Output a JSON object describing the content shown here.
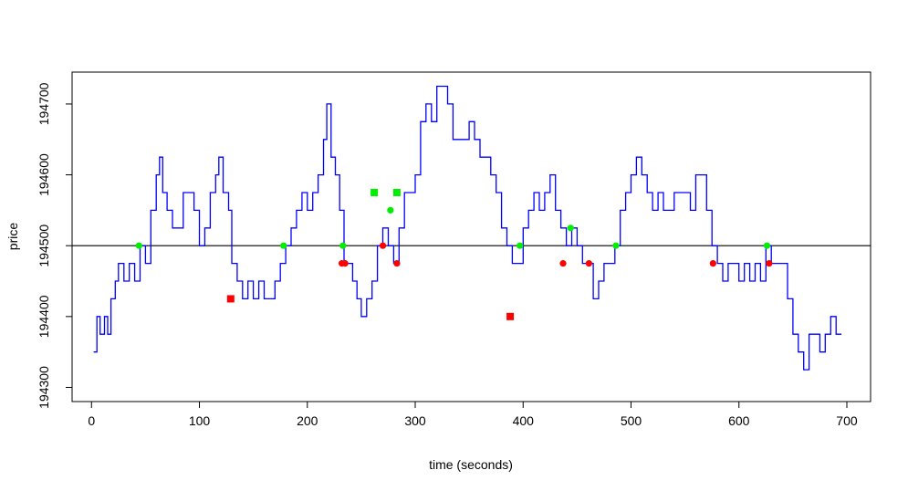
{
  "chart_data": {
    "type": "line",
    "title": "",
    "xlabel": "time (seconds)",
    "ylabel": "price",
    "xlim": [
      -18,
      722
    ],
    "ylim": [
      194280,
      194745
    ],
    "x_ticks": [
      0,
      100,
      200,
      300,
      400,
      500,
      600,
      700
    ],
    "y_ticks": [
      194300,
      194400,
      194500,
      194600,
      194700
    ],
    "grid": false,
    "legend": "none",
    "reference_line": {
      "y": 194500,
      "color": "#000000"
    },
    "price_series": {
      "color": "#0000ff",
      "points": [
        [
          2,
          194350
        ],
        [
          5,
          194400
        ],
        [
          8,
          194375
        ],
        [
          12,
          194400
        ],
        [
          15,
          194375
        ],
        [
          18,
          194425
        ],
        [
          22,
          194450
        ],
        [
          25,
          194475
        ],
        [
          30,
          194450
        ],
        [
          35,
          194475
        ],
        [
          40,
          194450
        ],
        [
          45,
          194500
        ],
        [
          50,
          194475
        ],
        [
          55,
          194550
        ],
        [
          60,
          194600
        ],
        [
          63,
          194625
        ],
        [
          66,
          194575
        ],
        [
          70,
          194550
        ],
        [
          75,
          194525
        ],
        [
          80,
          194525
        ],
        [
          85,
          194575
        ],
        [
          90,
          194575
        ],
        [
          95,
          194550
        ],
        [
          100,
          194500
        ],
        [
          105,
          194525
        ],
        [
          110,
          194575
        ],
        [
          115,
          194600
        ],
        [
          118,
          194625
        ],
        [
          122,
          194575
        ],
        [
          127,
          194550
        ],
        [
          130,
          194475
        ],
        [
          135,
          194450
        ],
        [
          140,
          194425
        ],
        [
          145,
          194450
        ],
        [
          150,
          194425
        ],
        [
          155,
          194450
        ],
        [
          160,
          194425
        ],
        [
          165,
          194425
        ],
        [
          170,
          194450
        ],
        [
          175,
          194475
        ],
        [
          180,
          194500
        ],
        [
          185,
          194525
        ],
        [
          190,
          194550
        ],
        [
          195,
          194575
        ],
        [
          200,
          194550
        ],
        [
          205,
          194575
        ],
        [
          210,
          194600
        ],
        [
          215,
          194650
        ],
        [
          218,
          194700
        ],
        [
          222,
          194625
        ],
        [
          226,
          194600
        ],
        [
          230,
          194550
        ],
        [
          234,
          194475
        ],
        [
          238,
          194475
        ],
        [
          242,
          194450
        ],
        [
          246,
          194425
        ],
        [
          250,
          194400
        ],
        [
          255,
          194425
        ],
        [
          260,
          194450
        ],
        [
          265,
          194500
        ],
        [
          270,
          194525
        ],
        [
          275,
          194500
        ],
        [
          280,
          194475
        ],
        [
          285,
          194525
        ],
        [
          290,
          194575
        ],
        [
          295,
          194575
        ],
        [
          300,
          194600
        ],
        [
          305,
          194675
        ],
        [
          310,
          194700
        ],
        [
          315,
          194675
        ],
        [
          320,
          194725
        ],
        [
          325,
          194725
        ],
        [
          330,
          194700
        ],
        [
          335,
          194650
        ],
        [
          340,
          194650
        ],
        [
          345,
          194650
        ],
        [
          350,
          194675
        ],
        [
          355,
          194650
        ],
        [
          360,
          194625
        ],
        [
          365,
          194625
        ],
        [
          370,
          194600
        ],
        [
          375,
          194575
        ],
        [
          380,
          194525
        ],
        [
          385,
          194500
        ],
        [
          390,
          194475
        ],
        [
          395,
          194475
        ],
        [
          400,
          194525
        ],
        [
          405,
          194550
        ],
        [
          410,
          194575
        ],
        [
          415,
          194550
        ],
        [
          420,
          194575
        ],
        [
          425,
          194600
        ],
        [
          430,
          194550
        ],
        [
          435,
          194525
        ],
        [
          440,
          194500
        ],
        [
          445,
          194525
        ],
        [
          450,
          194500
        ],
        [
          455,
          194475
        ],
        [
          460,
          194475
        ],
        [
          465,
          194425
        ],
        [
          470,
          194450
        ],
        [
          475,
          194475
        ],
        [
          480,
          194475
        ],
        [
          485,
          194500
        ],
        [
          490,
          194550
        ],
        [
          495,
          194575
        ],
        [
          500,
          194600
        ],
        [
          505,
          194625
        ],
        [
          510,
          194600
        ],
        [
          515,
          194575
        ],
        [
          520,
          194550
        ],
        [
          525,
          194575
        ],
        [
          530,
          194550
        ],
        [
          535,
          194550
        ],
        [
          540,
          194575
        ],
        [
          545,
          194575
        ],
        [
          550,
          194575
        ],
        [
          555,
          194550
        ],
        [
          560,
          194600
        ],
        [
          565,
          194600
        ],
        [
          570,
          194550
        ],
        [
          575,
          194500
        ],
        [
          580,
          194475
        ],
        [
          585,
          194450
        ],
        [
          590,
          194475
        ],
        [
          595,
          194475
        ],
        [
          600,
          194450
        ],
        [
          605,
          194475
        ],
        [
          610,
          194450
        ],
        [
          615,
          194475
        ],
        [
          620,
          194450
        ],
        [
          625,
          194500
        ],
        [
          630,
          194475
        ],
        [
          635,
          194475
        ],
        [
          640,
          194475
        ],
        [
          645,
          194425
        ],
        [
          650,
          194375
        ],
        [
          655,
          194350
        ],
        [
          660,
          194325
        ],
        [
          665,
          194375
        ],
        [
          670,
          194375
        ],
        [
          675,
          194350
        ],
        [
          680,
          194375
        ],
        [
          685,
          194400
        ],
        [
          690,
          194375
        ],
        [
          695,
          194375
        ]
      ]
    },
    "markers": [
      {
        "x": 44,
        "y": 194500,
        "shape": "circle",
        "color": "#00ee00"
      },
      {
        "x": 178,
        "y": 194500,
        "shape": "circle",
        "color": "#00ee00"
      },
      {
        "x": 233,
        "y": 194500,
        "shape": "circle",
        "color": "#00ee00"
      },
      {
        "x": 277,
        "y": 194550,
        "shape": "circle",
        "color": "#00ee00"
      },
      {
        "x": 397,
        "y": 194500,
        "shape": "circle",
        "color": "#00ee00"
      },
      {
        "x": 444,
        "y": 194525,
        "shape": "circle",
        "color": "#00ee00"
      },
      {
        "x": 486,
        "y": 194500,
        "shape": "circle",
        "color": "#00ee00"
      },
      {
        "x": 626,
        "y": 194500,
        "shape": "circle",
        "color": "#00ee00"
      },
      {
        "x": 262,
        "y": 194575,
        "shape": "square",
        "color": "#00ee00"
      },
      {
        "x": 283,
        "y": 194575,
        "shape": "square",
        "color": "#00ee00"
      },
      {
        "x": 232,
        "y": 194475,
        "shape": "circle",
        "color": "#ff0000"
      },
      {
        "x": 235,
        "y": 194475,
        "shape": "circle",
        "color": "#ff0000"
      },
      {
        "x": 270,
        "y": 194500,
        "shape": "circle",
        "color": "#ff0000"
      },
      {
        "x": 283,
        "y": 194475,
        "shape": "circle",
        "color": "#ff0000"
      },
      {
        "x": 437,
        "y": 194475,
        "shape": "circle",
        "color": "#ff0000"
      },
      {
        "x": 461,
        "y": 194475,
        "shape": "circle",
        "color": "#ff0000"
      },
      {
        "x": 576,
        "y": 194475,
        "shape": "circle",
        "color": "#ff0000"
      },
      {
        "x": 628,
        "y": 194475,
        "shape": "circle",
        "color": "#ff0000"
      },
      {
        "x": 129,
        "y": 194425,
        "shape": "square",
        "color": "#ff0000"
      },
      {
        "x": 388,
        "y": 194400,
        "shape": "square",
        "color": "#ff0000"
      }
    ]
  }
}
